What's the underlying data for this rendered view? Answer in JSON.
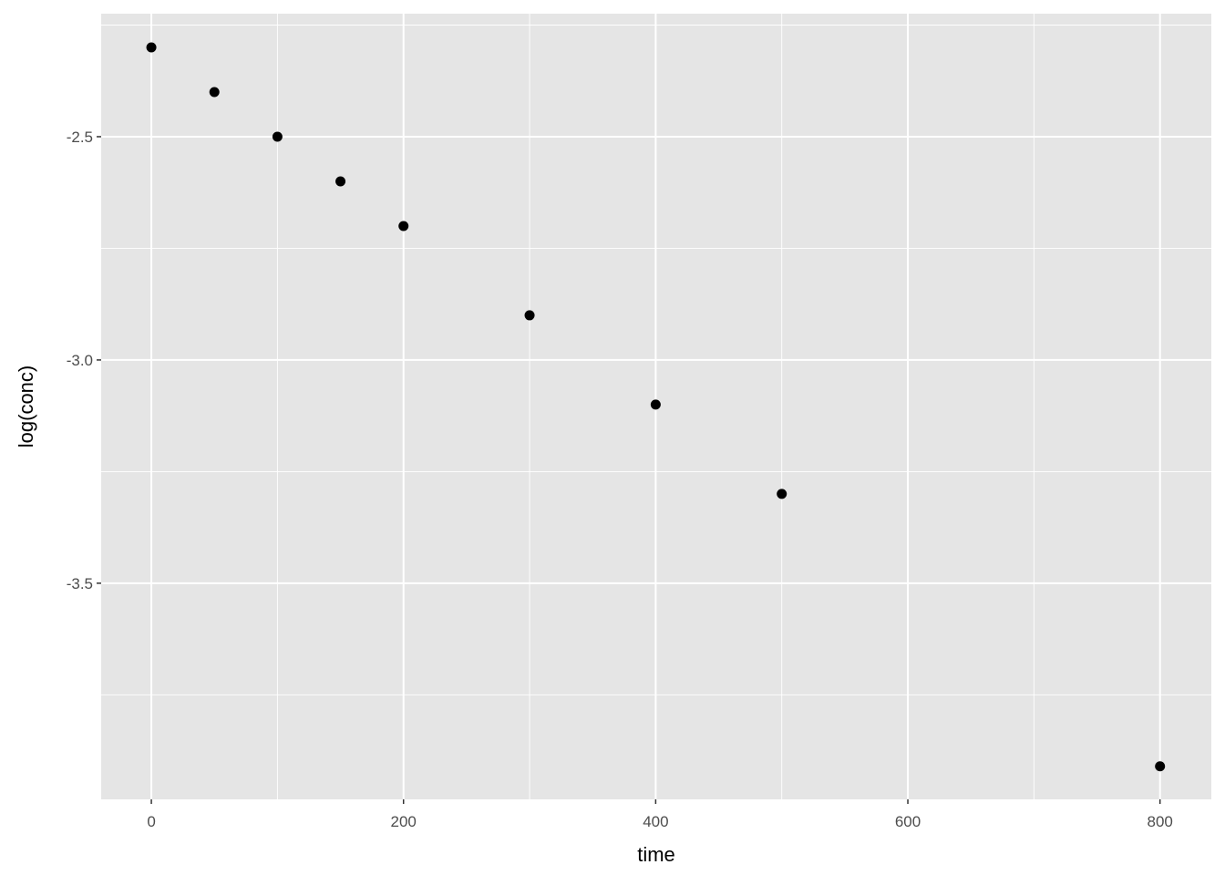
{
  "chart_data": {
    "type": "scatter",
    "title": "",
    "xlabel": "time",
    "ylabel": "log(conc)",
    "xlim": [
      -39.8,
      840.7
    ],
    "ylim": [
      -3.984,
      -2.2245
    ],
    "x_ticks": [
      0,
      200,
      400,
      600,
      800
    ],
    "x_tick_labels": [
      "0",
      "200",
      "400",
      "600",
      "800"
    ],
    "y_ticks": [
      -2.5,
      -3.0,
      -3.5
    ],
    "y_tick_labels": [
      "-2.5",
      "-3.0",
      "-3.5"
    ],
    "grid": true,
    "points": [
      {
        "x": 0,
        "y": -2.3
      },
      {
        "x": 50,
        "y": -2.4
      },
      {
        "x": 100,
        "y": -2.5
      },
      {
        "x": 150,
        "y": -2.6
      },
      {
        "x": 200,
        "y": -2.7
      },
      {
        "x": 300,
        "y": -2.9
      },
      {
        "x": 400,
        "y": -3.1
      },
      {
        "x": 500,
        "y": -3.3
      },
      {
        "x": 800,
        "y": -3.91
      }
    ],
    "colors": {
      "panel": "#e5e5e5",
      "grid": "#ffffff",
      "point": "#000000"
    }
  }
}
